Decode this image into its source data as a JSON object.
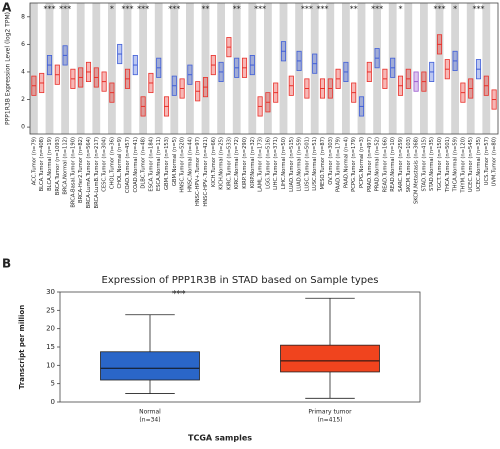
{
  "chart_data": [
    {
      "type": "box",
      "panel": "A",
      "ylabel": "PPP1R3B Expression Level (log2 TPM)",
      "ylim": [
        -0.5,
        9
      ],
      "yticks": [
        0,
        2,
        4,
        6,
        8
      ],
      "stripes": true,
      "categories": [
        "ACC.Tumor (n=79)",
        "BLCA.Tumor (n=408)",
        "BLCA.Normal (n=19)",
        "BRCA.Tumor (n=1093)",
        "BRCA.Normal (n=112)",
        "BRCA-Basal.Tumor (n=190)",
        "BRCA-Her2.Tumor (n=82)",
        "BRCA-LumA.Tumor (n=564)",
        "BRCA-LumB.Tumor (n=217)",
        "CESC.Tumor (n=304)",
        "CHOL.Tumor (n=36)",
        "CHOL.Normal (n=9)",
        "COAD.Tumor (n=457)",
        "COAD.Normal (n=41)",
        "DLBC.Tumor (n=48)",
        "ESCA.Tumor (n=184)",
        "ESCA.Normal (n=11)",
        "GBM.Tumor (n=153)",
        "GBM.Normal (n=5)",
        "HNSC.Tumor (n=520)",
        "HNSC.Normal (n=44)",
        "HNSC-HPV+.Tumor (n=97)",
        "HNSC-HPV-.Tumor (n=421)",
        "KICH.Tumor (n=66)",
        "KICH.Normal (n=25)",
        "KIRC.Tumor (n=533)",
        "KIRC.Normal (n=72)",
        "KIRP.Tumor (n=290)",
        "KIRP.Normal (n=32)",
        "LAML.Tumor (n=173)",
        "LGG.Tumor (n=516)",
        "LIHC.Tumor (n=371)",
        "LIHC.Normal (n=50)",
        "LUAD.Tumor (n=515)",
        "LUAD.Normal (n=59)",
        "LUSC.Tumor (n=501)",
        "LUSC.Normal (n=51)",
        "MESO.Tumor (n=87)",
        "OV.Tumor (n=303)",
        "PAAD.Tumor (n=179)",
        "PAAD.Normal (n=4)",
        "PCPG.Tumor (n=179)",
        "PCPG.Normal (n=3)",
        "PRAD.Tumor (n=497)",
        "PRAD.Normal (n=52)",
        "READ.Tumor (n=166)",
        "READ.Normal (n=10)",
        "SARC.Tumor (n=259)",
        "SKCM.Tumor (n=103)",
        "SKCM.Metastasis (n=368)",
        "STAD.Tumor (n=415)",
        "STAD.Normal (n=35)",
        "TGCT.Tumor (n=150)",
        "THCA.Tumor (n=501)",
        "THCA.Normal (n=59)",
        "THYM.Tumor (n=120)",
        "UCEC.Tumor (n=545)",
        "UCEC.Normal (n=35)",
        "UCS.Tumor (n=57)",
        "UVM.Tumor (n=80)"
      ],
      "median": [
        3,
        3.2,
        4.5,
        3.8,
        5.2,
        3.5,
        3.6,
        4,
        3.6,
        3.3,
        2.5,
        5.3,
        3.5,
        4.5,
        1.5,
        3.2,
        4.3,
        1.5,
        3,
        2.8,
        3.8,
        2.6,
        2.9,
        4.5,
        4,
        5.8,
        4.3,
        4.3,
        4.5,
        1.5,
        1.8,
        2.5,
        5.5,
        3,
        4.8,
        2.8,
        4.6,
        2.8,
        2.8,
        3.5,
        4,
        2.5,
        1.5,
        4,
        5,
        3.5,
        4.3,
        3,
        3.5,
        3.3,
        3.3,
        4,
        6,
        4.2,
        4.8,
        2.5,
        2.8,
        4.2,
        3,
        2
      ],
      "q1": [
        2.3,
        2.5,
        3.8,
        3.1,
        4.5,
        2.8,
        2.9,
        3.3,
        2.9,
        2.6,
        1.8,
        4.6,
        2.8,
        3.8,
        0.8,
        2.5,
        3.6,
        0.8,
        2.3,
        2.1,
        3.1,
        1.9,
        2.2,
        3.8,
        3.3,
        5.1,
        3.6,
        3.6,
        3.8,
        0.8,
        1.1,
        1.8,
        4.8,
        2.3,
        4.1,
        2.1,
        3.9,
        2.1,
        2.1,
        2.8,
        3.3,
        1.8,
        0.8,
        3.3,
        4.3,
        2.8,
        3.6,
        2.3,
        2.8,
        2.6,
        2.6,
        3.3,
        5.3,
        3.5,
        4.1,
        1.8,
        2.1,
        3.5,
        2.3,
        1.3
      ],
      "q3": [
        3.7,
        3.9,
        5.2,
        4.5,
        5.9,
        4.2,
        4.3,
        4.7,
        4.3,
        4,
        3.2,
        6,
        4.2,
        5.2,
        2.2,
        3.9,
        5,
        2.2,
        3.7,
        3.5,
        4.5,
        3.3,
        3.6,
        5.2,
        4.7,
        6.5,
        5,
        5,
        5.2,
        2.2,
        2.5,
        3.2,
        6.2,
        3.7,
        5.5,
        3.5,
        5.3,
        3.5,
        3.5,
        4.2,
        4.7,
        3.2,
        2.2,
        4.7,
        5.7,
        4.2,
        5,
        3.7,
        4.2,
        4,
        4,
        4.7,
        6.7,
        4.9,
        5.5,
        3.2,
        3.5,
        4.9,
        3.7,
        2.7
      ],
      "colors": [
        "#e8302a",
        "#e8302a",
        "#3f5ed8",
        "#e8302a",
        "#3f5ed8",
        "#e8302a",
        "#e8302a",
        "#e8302a",
        "#e8302a",
        "#e8302a",
        "#e8302a",
        "#3f5ed8",
        "#e8302a",
        "#3f5ed8",
        "#e8302a",
        "#e8302a",
        "#3f5ed8",
        "#e8302a",
        "#3f5ed8",
        "#e8302a",
        "#3f5ed8",
        "#e8302a",
        "#e8302a",
        "#e8302a",
        "#3f5ed8",
        "#e8302a",
        "#3f5ed8",
        "#e8302a",
        "#3f5ed8",
        "#e8302a",
        "#e8302a",
        "#e8302a",
        "#3f5ed8",
        "#e8302a",
        "#3f5ed8",
        "#e8302a",
        "#3f5ed8",
        "#e8302a",
        "#e8302a",
        "#e8302a",
        "#3f5ed8",
        "#e8302a",
        "#3f5ed8",
        "#e8302a",
        "#3f5ed8",
        "#e8302a",
        "#3f5ed8",
        "#e8302a",
        "#e8302a",
        "#9b59d0",
        "#e8302a",
        "#3f5ed8",
        "#e8302a",
        "#e8302a",
        "#3f5ed8",
        "#e8302a",
        "#e8302a",
        "#3f5ed8",
        "#e8302a",
        "#e8302a"
      ],
      "significance": [
        null,
        null,
        "***",
        null,
        "***",
        null,
        null,
        null,
        null,
        null,
        "*",
        null,
        "***",
        null,
        "***",
        null,
        null,
        null,
        "***",
        null,
        null,
        null,
        "**",
        null,
        null,
        null,
        "**",
        null,
        null,
        "***",
        null,
        null,
        null,
        null,
        null,
        "***",
        null,
        "***",
        null,
        null,
        null,
        "**",
        null,
        null,
        "***",
        null,
        null,
        "*",
        null,
        null,
        null,
        null,
        "***",
        null,
        "*",
        null,
        null,
        "***",
        null,
        null
      ]
    },
    {
      "type": "box",
      "panel": "B",
      "title": "Expression of PPP1R3B in STAD based on Sample types",
      "ylabel": "Transcript per million",
      "xlabel": "TCGA samples",
      "annotation": "***",
      "ylim": [
        0,
        30
      ],
      "yticks": [
        0,
        5,
        10,
        15,
        20,
        25,
        30
      ],
      "stripes": false,
      "categories": [
        "Normal",
        "Primary tumor"
      ],
      "n_labels": [
        "(n=34)",
        "(n=415)"
      ],
      "min": [
        2.3,
        1.0
      ],
      "q1": [
        6,
        8.2
      ],
      "median": [
        9.2,
        11.2
      ],
      "q3": [
        13.7,
        15.5
      ],
      "max": [
        23.8,
        28.3
      ],
      "colors": [
        "#2a66c8",
        "#f0441e"
      ]
    }
  ]
}
